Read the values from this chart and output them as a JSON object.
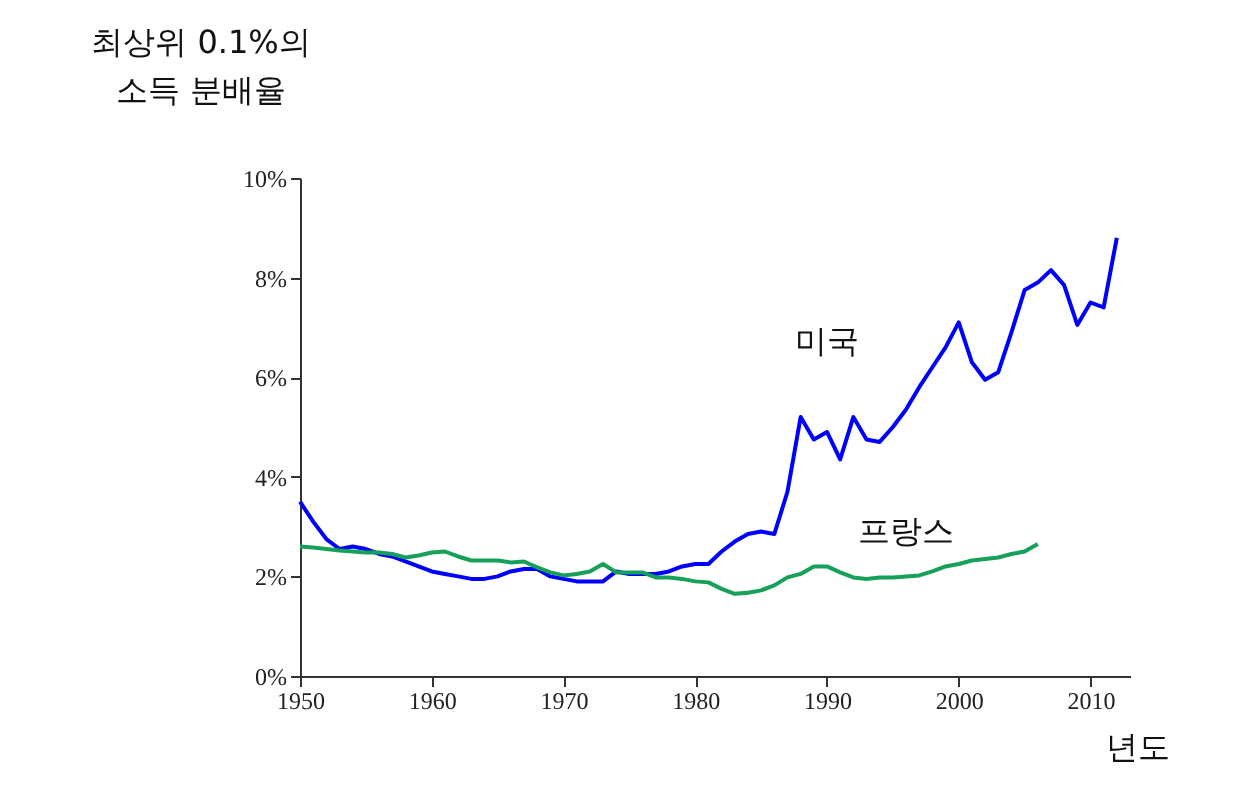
{
  "chart_data": {
    "type": "line",
    "ylabel": "최상위 0.1%의\n소득 분배율",
    "xlabel": "년도",
    "x": [
      1950,
      1951,
      1952,
      1953,
      1954,
      1955,
      1956,
      1957,
      1958,
      1959,
      1960,
      1961,
      1962,
      1963,
      1964,
      1965,
      1966,
      1967,
      1968,
      1969,
      1970,
      1971,
      1972,
      1973,
      1974,
      1975,
      1976,
      1977,
      1978,
      1979,
      1980,
      1981,
      1982,
      1983,
      1984,
      1985,
      1986,
      1987,
      1988,
      1989,
      1990,
      1991,
      1992,
      1993,
      1994,
      1995,
      1996,
      1997,
      1998,
      1999,
      2000,
      2001,
      2002,
      2003,
      2004,
      2005,
      2006,
      2007,
      2008,
      2009,
      2010,
      2011,
      2012
    ],
    "series": [
      {
        "name": "미국",
        "color": "#0000ff",
        "values": [
          3.5,
          3.1,
          2.75,
          2.55,
          2.6,
          2.55,
          2.45,
          2.4,
          2.3,
          2.2,
          2.1,
          2.05,
          2.0,
          1.95,
          1.95,
          2.0,
          2.1,
          2.15,
          2.15,
          2.0,
          1.95,
          1.9,
          1.9,
          1.9,
          2.1,
          2.05,
          2.05,
          2.05,
          2.1,
          2.2,
          2.25,
          2.25,
          2.5,
          2.7,
          2.85,
          2.9,
          2.85,
          3.7,
          5.2,
          4.75,
          4.9,
          4.35,
          5.2,
          4.75,
          4.7,
          5.0,
          5.35,
          5.8,
          6.2,
          6.6,
          7.1,
          6.3,
          5.95,
          6.1,
          6.9,
          7.75,
          7.9,
          8.15,
          7.85,
          7.05,
          7.5,
          7.4,
          8.8
        ]
      },
      {
        "name": "프랑스",
        "color": "#16a05a",
        "values": [
          2.6,
          2.58,
          2.55,
          2.52,
          2.5,
          2.48,
          2.48,
          2.45,
          2.38,
          2.42,
          2.48,
          2.5,
          2.4,
          2.32,
          2.32,
          2.32,
          2.28,
          2.3,
          2.18,
          2.08,
          2.02,
          2.05,
          2.1,
          2.25,
          2.08,
          2.08,
          2.08,
          1.98,
          1.98,
          1.95,
          1.9,
          1.88,
          1.75,
          1.65,
          1.67,
          1.72,
          1.82,
          1.98,
          2.05,
          2.2,
          2.2,
          2.08,
          1.98,
          1.95,
          1.98,
          1.98,
          2.0,
          2.02,
          2.1,
          2.2,
          2.25,
          2.32,
          2.35,
          2.38,
          2.45,
          2.5,
          2.65,
          null,
          null,
          null,
          null,
          null,
          null
        ]
      }
    ],
    "xlim": [
      1950,
      2013
    ],
    "xticks": [
      1950,
      1960,
      1970,
      1980,
      1990,
      2000,
      2010
    ],
    "ylim": [
      0,
      10
    ],
    "yticks": [
      {
        "value": 0,
        "label": "0%"
      },
      {
        "value": 2,
        "label": "2%"
      },
      {
        "value": 4,
        "label": "4%"
      },
      {
        "value": 6,
        "label": "6%"
      },
      {
        "value": 8,
        "label": "8%"
      },
      {
        "value": 10,
        "label": "10%"
      }
    ],
    "grid": false,
    "legend": false,
    "marker": "none",
    "line_style": "solid"
  }
}
